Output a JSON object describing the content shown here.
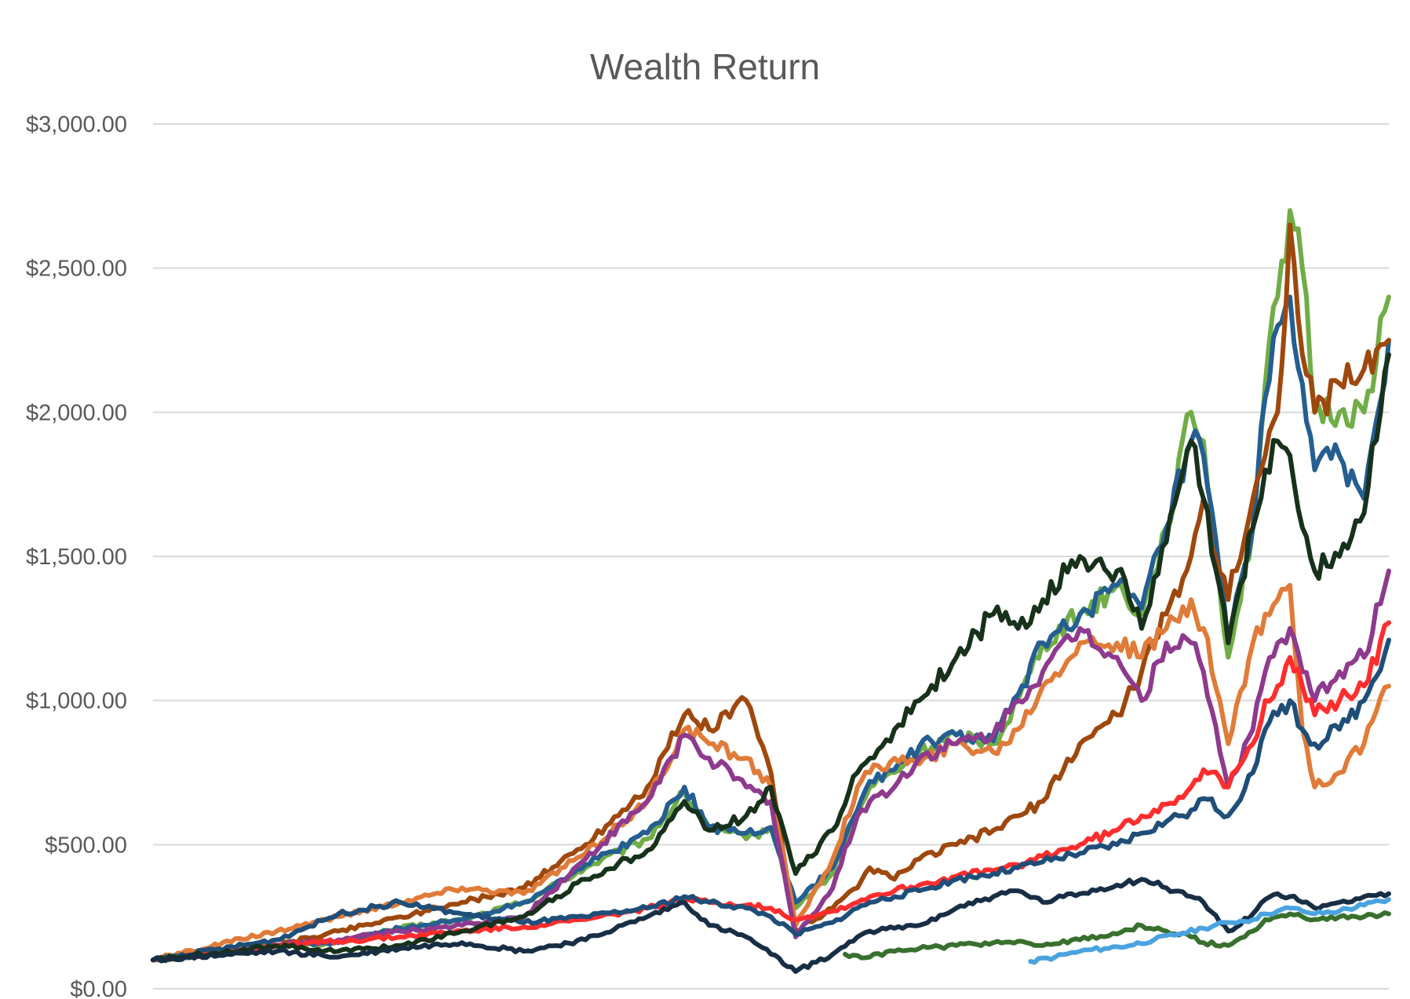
{
  "chart_data": {
    "type": "line",
    "title": "Wealth Return",
    "xlabel": "",
    "ylabel": "",
    "ylim": [
      0,
      3000
    ],
    "yticks": [
      "$0.00",
      "$500.00",
      "$1,000.00",
      "$1,500.00",
      "$2,000.00",
      "$2,500.00",
      "$3,000.00"
    ],
    "ytick_values": [
      0,
      500,
      1000,
      1500,
      2000,
      2500,
      3000
    ],
    "x_index_range": [
      0,
      100
    ],
    "grid": true,
    "legend": "none",
    "series": [
      {
        "color": "#70ad47",
        "x": [
          0,
          10,
          15,
          20,
          25,
          30,
          35,
          40,
          43,
          45,
          48,
          50,
          52,
          55,
          57,
          58,
          60,
          62,
          65,
          68,
          70,
          72,
          75,
          78,
          80,
          82,
          84,
          85,
          87,
          89,
          90,
          91,
          92,
          93,
          94,
          96,
          98,
          100
        ],
        "values": [
          100,
          150,
          160,
          210,
          240,
          300,
          420,
          520,
          680,
          560,
          520,
          560,
          280,
          400,
          600,
          700,
          750,
          820,
          880,
          850,
          1000,
          1200,
          1300,
          1400,
          1300,
          1600,
          2000,
          1900,
          1150,
          1600,
          2100,
          2400,
          2700,
          2500,
          2000,
          2000,
          2000,
          2400
        ]
      },
      {
        "color": "#255e91",
        "x": [
          0,
          10,
          15,
          20,
          25,
          30,
          35,
          40,
          43,
          45,
          48,
          50,
          52,
          55,
          57,
          58,
          60,
          62,
          65,
          68,
          70,
          72,
          75,
          78,
          80,
          82,
          84,
          85,
          87,
          89,
          90,
          91,
          92,
          93,
          94,
          96,
          98,
          100
        ],
        "values": [
          100,
          150,
          160,
          210,
          240,
          300,
          430,
          540,
          700,
          560,
          540,
          560,
          300,
          420,
          620,
          720,
          760,
          840,
          880,
          860,
          1020,
          1200,
          1300,
          1400,
          1320,
          1600,
          1900,
          1850,
          1200,
          1600,
          2050,
          2300,
          2400,
          2100,
          1800,
          1850,
          1700,
          2250
        ]
      },
      {
        "color": "#9e480e",
        "x": [
          0,
          10,
          15,
          20,
          25,
          30,
          35,
          40,
          43,
          45,
          48,
          50,
          52,
          55,
          57,
          58,
          60,
          62,
          65,
          68,
          70,
          72,
          75,
          78,
          80,
          82,
          84,
          85,
          87,
          89,
          90,
          91,
          92,
          93,
          94,
          96,
          98,
          100
        ],
        "values": [
          100,
          150,
          200,
          250,
          300,
          350,
          500,
          700,
          950,
          900,
          1000,
          750,
          200,
          280,
          350,
          420,
          380,
          450,
          500,
          550,
          600,
          650,
          850,
          950,
          1100,
          1300,
          1500,
          1700,
          1350,
          1700,
          1850,
          2000,
          2650,
          2200,
          2000,
          2100,
          2150,
          2250
        ]
      },
      {
        "color": "#e07b39",
        "x": [
          0,
          10,
          15,
          20,
          25,
          30,
          35,
          40,
          43,
          45,
          48,
          50,
          52,
          55,
          57,
          58,
          60,
          62,
          65,
          68,
          70,
          72,
          75,
          78,
          80,
          82,
          84,
          85,
          87,
          89,
          90,
          91,
          92,
          93,
          94,
          96,
          98,
          100
        ],
        "values": [
          100,
          200,
          250,
          300,
          350,
          330,
          470,
          650,
          900,
          850,
          800,
          700,
          220,
          450,
          700,
          750,
          800,
          780,
          850,
          820,
          900,
          1050,
          1200,
          1200,
          1150,
          1250,
          1350,
          1250,
          850,
          1200,
          1300,
          1350,
          1400,
          900,
          700,
          750,
          850,
          1050
        ]
      },
      {
        "color": "#8e3a8e",
        "x": [
          0,
          10,
          15,
          20,
          25,
          30,
          35,
          40,
          43,
          45,
          48,
          50,
          52,
          55,
          57,
          58,
          60,
          62,
          65,
          68,
          70,
          72,
          75,
          78,
          80,
          82,
          84,
          85,
          87,
          89,
          90,
          91,
          92,
          93,
          94,
          96,
          98,
          100
        ],
        "values": [
          100,
          150,
          170,
          200,
          220,
          250,
          450,
          650,
          880,
          800,
          700,
          650,
          180,
          350,
          600,
          650,
          700,
          800,
          850,
          880,
          1000,
          1100,
          1250,
          1150,
          1000,
          1200,
          1200,
          1100,
          700,
          900,
          1100,
          1200,
          1250,
          1100,
          1000,
          1100,
          1150,
          1450
        ]
      },
      {
        "color": "#ff2d2d",
        "x": [
          0,
          10,
          15,
          20,
          25,
          30,
          35,
          40,
          43,
          45,
          48,
          50,
          52,
          55,
          57,
          58,
          60,
          62,
          65,
          68,
          70,
          72,
          75,
          78,
          80,
          82,
          84,
          85,
          87,
          89,
          90,
          91,
          92,
          93,
          94,
          96,
          98,
          100
        ],
        "values": [
          100,
          150,
          165,
          180,
          200,
          215,
          240,
          280,
          310,
          300,
          290,
          280,
          240,
          270,
          300,
          320,
          340,
          360,
          390,
          410,
          430,
          460,
          500,
          550,
          600,
          640,
          700,
          760,
          700,
          850,
          1000,
          1050,
          1150,
          1050,
          950,
          1000,
          1050,
          1270
        ]
      },
      {
        "color": "#1f4e79",
        "x": [
          0,
          10,
          15,
          20,
          25,
          30,
          35,
          40,
          43,
          45,
          48,
          50,
          52,
          55,
          57,
          58,
          60,
          62,
          65,
          68,
          70,
          72,
          75,
          78,
          80,
          82,
          84,
          85,
          87,
          89,
          90,
          91,
          92,
          93,
          94,
          96,
          98,
          100
        ],
        "values": [
          100,
          170,
          260,
          300,
          260,
          230,
          250,
          280,
          320,
          300,
          280,
          250,
          190,
          230,
          280,
          300,
          320,
          340,
          380,
          400,
          420,
          440,
          470,
          500,
          540,
          580,
          620,
          660,
          600,
          750,
          900,
          950,
          1000,
          900,
          850,
          900,
          1000,
          1210
        ]
      },
      {
        "color": "#17311a",
        "x": [
          0,
          10,
          15,
          20,
          25,
          30,
          35,
          40,
          43,
          45,
          48,
          50,
          52,
          55,
          57,
          58,
          60,
          62,
          65,
          68,
          70,
          72,
          75,
          78,
          80,
          82,
          84,
          85,
          87,
          89,
          90,
          91,
          92,
          93,
          94,
          96,
          98,
          100
        ],
        "values": [
          100,
          150,
          130,
          150,
          200,
          250,
          380,
          480,
          650,
          550,
          600,
          700,
          400,
          550,
          750,
          800,
          900,
          1000,
          1150,
          1300,
          1250,
          1350,
          1500,
          1450,
          1250,
          1550,
          1900,
          1700,
          1200,
          1600,
          1800,
          1900,
          1850,
          1600,
          1450,
          1500,
          1650,
          2200
        ]
      },
      {
        "color": "#172e45",
        "x": [
          0,
          10,
          15,
          20,
          25,
          30,
          35,
          40,
          43,
          45,
          48,
          50,
          52,
          55,
          57,
          58,
          60,
          62,
          65,
          68,
          70,
          72,
          75,
          78,
          80,
          82,
          84,
          85,
          87,
          89,
          90,
          91,
          92,
          93,
          94,
          96,
          98,
          100
        ],
        "values": [
          100,
          130,
          110,
          140,
          160,
          130,
          170,
          250,
          300,
          220,
          180,
          120,
          60,
          120,
          180,
          200,
          210,
          220,
          280,
          320,
          340,
          300,
          330,
          360,
          380,
          350,
          320,
          300,
          200,
          260,
          310,
          330,
          320,
          300,
          280,
          300,
          320,
          330
        ]
      },
      {
        "color": "#38702e",
        "x": [
          56,
          58,
          60,
          62,
          65,
          68,
          70,
          72,
          75,
          78,
          80,
          82,
          84,
          85,
          87,
          89,
          90,
          91,
          92,
          93,
          94,
          96,
          98,
          100
        ],
        "values": [
          120,
          110,
          130,
          140,
          150,
          160,
          165,
          150,
          170,
          190,
          220,
          200,
          180,
          160,
          150,
          200,
          240,
          250,
          260,
          250,
          240,
          250,
          250,
          260
        ]
      },
      {
        "color": "#4aa3df",
        "x": [
          71,
          73,
          75,
          77,
          79,
          81,
          83,
          85,
          87,
          89,
          90,
          91,
          92,
          93,
          94,
          96,
          98,
          100
        ],
        "values": [
          95,
          110,
          130,
          140,
          150,
          170,
          190,
          210,
          230,
          240,
          260,
          270,
          280,
          270,
          260,
          270,
          290,
          310
        ]
      }
    ]
  }
}
